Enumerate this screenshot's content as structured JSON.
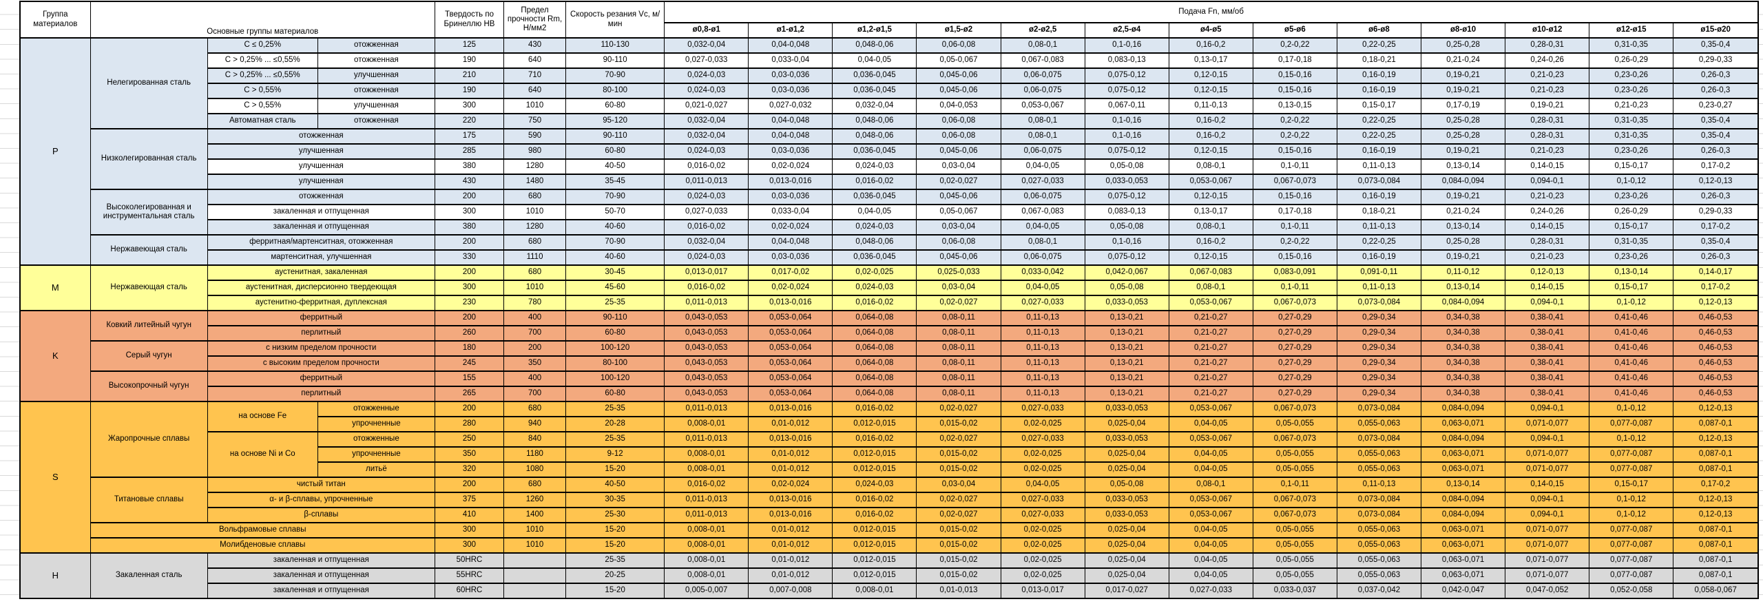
{
  "header": {
    "col_group": "Группа материалов",
    "col_main": "Основные группы материалов",
    "col_hardness": "Твердость по Бринеллю НВ",
    "col_strength": "Предел прочности Rm, Н/мм2",
    "col_speed": "Скорость резания Vc, м/мин",
    "feed_title": "Подача Fn, мм/об",
    "feed_cols": [
      "ø0,8-ø1",
      "ø1-ø1,2",
      "ø1,2-ø1,5",
      "ø1,5-ø2",
      "ø2-ø2,5",
      "ø2,5-ø4",
      "ø4-ø5",
      "ø5-ø6",
      "ø6-ø8",
      "ø8-ø10",
      "ø10-ø12",
      "ø12-ø15",
      "ø15-ø20"
    ]
  },
  "colors": {
    "group_p": "#DCE6F1",
    "group_m": "#FFFF99",
    "group_k": "#F3A97E",
    "group_s": "#FFC44F",
    "group_h": "#D9D9D9",
    "border": "#000000",
    "gridline": "#D9D9D9"
  },
  "feed_profiles": {
    "A": [
      "0,032-0,04",
      "0,04-0,048",
      "0,048-0,06",
      "0,06-0,08",
      "0,08-0,1",
      "0,1-0,16",
      "0,16-0,2",
      "0,2-0,22",
      "0,22-0,25",
      "0,25-0,28",
      "0,28-0,31",
      "0,31-0,35",
      "0,35-0,4"
    ],
    "B": [
      "0,027-0,033",
      "0,033-0,04",
      "0,04-0,05",
      "0,05-0,067",
      "0,067-0,083",
      "0,083-0,13",
      "0,13-0,17",
      "0,17-0,18",
      "0,18-0,21",
      "0,21-0,24",
      "0,24-0,26",
      "0,26-0,29",
      "0,29-0,33"
    ],
    "C": [
      "0,024-0,03",
      "0,03-0,036",
      "0,036-0,045",
      "0,045-0,06",
      "0,06-0,075",
      "0,075-0,12",
      "0,12-0,15",
      "0,15-0,16",
      "0,16-0,19",
      "0,19-0,21",
      "0,21-0,23",
      "0,23-0,26",
      "0,26-0,3"
    ],
    "D": [
      "0,021-0,027",
      "0,027-0,032",
      "0,032-0,04",
      "0,04-0,053",
      "0,053-0,067",
      "0,067-0,11",
      "0,11-0,13",
      "0,13-0,15",
      "0,15-0,17",
      "0,17-0,19",
      "0,19-0,21",
      "0,21-0,23",
      "0,23-0,27"
    ],
    "E": [
      "0,016-0,02",
      "0,02-0,024",
      "0,024-0,03",
      "0,03-0,04",
      "0,04-0,05",
      "0,05-0,08",
      "0,08-0,1",
      "0,1-0,11",
      "0,11-0,13",
      "0,13-0,14",
      "0,14-0,15",
      "0,15-0,17",
      "0,17-0,2"
    ],
    "F": [
      "0,011-0,013",
      "0,013-0,016",
      "0,016-0,02",
      "0,02-0,027",
      "0,027-0,033",
      "0,033-0,053",
      "0,053-0,067",
      "0,067-0,073",
      "0,073-0,084",
      "0,084-0,094",
      "0,094-0,1",
      "0,1-0,12",
      "0,12-0,13"
    ],
    "G": [
      "0,013-0,017",
      "0,017-0,02",
      "0,02-0,025",
      "0,025-0,033",
      "0,033-0,042",
      "0,042-0,067",
      "0,067-0,083",
      "0,083-0,091",
      "0,091-0,11",
      "0,11-0,12",
      "0,12-0,13",
      "0,13-0,14",
      "0,14-0,17"
    ],
    "H": [
      "0,043-0,053",
      "0,053-0,064",
      "0,064-0,08",
      "0,08-0,11",
      "0,11-0,13",
      "0,13-0,21",
      "0,21-0,27",
      "0,27-0,29",
      "0,29-0,34",
      "0,34-0,38",
      "0,38-0,41",
      "0,41-0,46",
      "0,46-0,53"
    ],
    "I": [
      "0,008-0,01",
      "0,01-0,012",
      "0,012-0,015",
      "0,015-0,02",
      "0,02-0,025",
      "0,025-0,04",
      "0,04-0,05",
      "0,05-0,055",
      "0,055-0,063",
      "0,063-0,071",
      "0,071-0,077",
      "0,077-0,087",
      "0,087-0,1"
    ],
    "J": [
      "0,005-0,007",
      "0,007-0,008",
      "0,008-0,01",
      "0,01-0,013",
      "0,013-0,017",
      "0,017-0,027",
      "0,027-0,033",
      "0,033-0,037",
      "0,037-0,042",
      "0,042-0,047",
      "0,047-0,052",
      "0,052-0,058",
      "0,058-0,067"
    ]
  },
  "rows": [
    {
      "grp": "p",
      "g": {
        "t": "P",
        "rs": 15
      },
      "m": {
        "t": "Нелегированная сталь",
        "rs": 6
      },
      "s": {
        "t": "C ≤ 0,25%"
      },
      "st": {
        "t": "отожженная"
      },
      "hb": "125",
      "rm": "430",
      "vc": "110-130",
      "p": "A"
    },
    {
      "grp": "p",
      "white": true,
      "s": {
        "t": "С > 0,25% ... ≤0,55%"
      },
      "st": {
        "t": "отожженная"
      },
      "hb": "190",
      "rm": "640",
      "vc": "90-110",
      "p": "B"
    },
    {
      "grp": "p",
      "s": {
        "t": "С > 0,25% ... ≤0,55%"
      },
      "st": {
        "t": "улучшенная"
      },
      "hb": "210",
      "rm": "710",
      "vc": "70-90",
      "p": "C"
    },
    {
      "grp": "p",
      "s": {
        "t": "C > 0,55%"
      },
      "st": {
        "t": "отожженная"
      },
      "hb": "190",
      "rm": "640",
      "vc": "80-100",
      "p": "C"
    },
    {
      "grp": "p",
      "white": true,
      "s": {
        "t": "C > 0,55%"
      },
      "st": {
        "t": "улучшенная"
      },
      "hb": "300",
      "rm": "1010",
      "vc": "60-80",
      "p": "D"
    },
    {
      "grp": "p",
      "s": {
        "t": "Автоматная сталь"
      },
      "st": {
        "t": "отожженная"
      },
      "hb": "220",
      "rm": "750",
      "vc": "95-120",
      "p": "A"
    },
    {
      "grp": "p",
      "m": {
        "t": "Низколегированная сталь",
        "rs": 4
      },
      "s": {
        "t": "отожженная",
        "cs": 2
      },
      "hb": "175",
      "rm": "590",
      "vc": "90-110",
      "p": "A"
    },
    {
      "grp": "p",
      "s": {
        "t": "улучшенная",
        "cs": 2
      },
      "hb": "285",
      "rm": "980",
      "vc": "60-80",
      "p": "C"
    },
    {
      "grp": "p",
      "white": true,
      "s": {
        "t": "улучшенная",
        "cs": 2
      },
      "hb": "380",
      "rm": "1280",
      "vc": "40-50",
      "p": "E"
    },
    {
      "grp": "p",
      "s": {
        "t": "улучшенная",
        "cs": 2
      },
      "hb": "430",
      "rm": "1480",
      "vc": "35-45",
      "p": "F"
    },
    {
      "grp": "p",
      "m": {
        "t": "Высоколегированная и инструментальная сталь",
        "rs": 3
      },
      "s": {
        "t": "отожженная",
        "cs": 2
      },
      "hb": "200",
      "rm": "680",
      "vc": "70-90",
      "p": "C"
    },
    {
      "grp": "p",
      "white": true,
      "s": {
        "t": "закаленная и отпущенная",
        "cs": 2
      },
      "hb": "300",
      "rm": "1010",
      "vc": "50-70",
      "p": "B"
    },
    {
      "grp": "p",
      "s": {
        "t": "закаленная и отпущенная",
        "cs": 2
      },
      "hb": "380",
      "rm": "1280",
      "vc": "40-60",
      "p": "E"
    },
    {
      "grp": "p",
      "m": {
        "t": "Нержавеющая сталь",
        "rs": 2
      },
      "s": {
        "t": "ферритная/мартенситная, отожженная",
        "cs": 2
      },
      "hb": "200",
      "rm": "680",
      "vc": "70-90",
      "p": "A"
    },
    {
      "grp": "p",
      "s": {
        "t": "мартенситная, улучшенная",
        "cs": 2
      },
      "hb": "330",
      "rm": "1110",
      "vc": "40-60",
      "p": "C"
    },
    {
      "grp": "m",
      "g": {
        "t": "M",
        "rs": 3
      },
      "m": {
        "t": "Нержавеющая сталь",
        "rs": 3
      },
      "s": {
        "t": "аустенитная, закаленная",
        "cs": 2
      },
      "hb": "200",
      "rm": "680",
      "vc": "30-45",
      "p": "G"
    },
    {
      "grp": "m",
      "s": {
        "t": "аустенитная, дисперсионно твердеющая",
        "cs": 2
      },
      "hb": "300",
      "rm": "1010",
      "vc": "45-60",
      "p": "E"
    },
    {
      "grp": "m",
      "s": {
        "t": "аустенитно-ферритная, дуплексная",
        "cs": 2
      },
      "hb": "230",
      "rm": "780",
      "vc": "25-35",
      "p": "F"
    },
    {
      "grp": "k",
      "g": {
        "t": "K",
        "rs": 6
      },
      "m": {
        "t": "Ковкий литейный чугун",
        "rs": 2
      },
      "s": {
        "t": "ферритный",
        "cs": 2
      },
      "hb": "200",
      "rm": "400",
      "vc": "90-110",
      "p": "H"
    },
    {
      "grp": "k",
      "s": {
        "t": "перлитный",
        "cs": 2
      },
      "hb": "260",
      "rm": "700",
      "vc": "60-80",
      "p": "H"
    },
    {
      "grp": "k",
      "m": {
        "t": "Серый чугун",
        "rs": 2
      },
      "s": {
        "t": "с низким пределом прочности",
        "cs": 2
      },
      "hb": "180",
      "rm": "200",
      "vc": "100-120",
      "p": "H"
    },
    {
      "grp": "k",
      "s": {
        "t": "с высоким пределом прочности",
        "cs": 2
      },
      "hb": "245",
      "rm": "350",
      "vc": "80-100",
      "p": "H"
    },
    {
      "grp": "k",
      "m": {
        "t": "Высокопрочный чугун",
        "rs": 2
      },
      "s": {
        "t": "ферритный",
        "cs": 2
      },
      "hb": "155",
      "rm": "400",
      "vc": "100-120",
      "p": "H"
    },
    {
      "grp": "k",
      "s": {
        "t": "перлитный",
        "cs": 2
      },
      "hb": "265",
      "rm": "700",
      "vc": "60-80",
      "p": "H"
    },
    {
      "grp": "s",
      "g": {
        "t": "S",
        "rs": 10
      },
      "m": {
        "t": "Жаропрочные сплавы",
        "rs": 5
      },
      "s": {
        "t": "на основе Fe",
        "rs": 2
      },
      "st": {
        "t": "отожженные"
      },
      "hb": "200",
      "rm": "680",
      "vc": "25-35",
      "p": "F"
    },
    {
      "grp": "s",
      "st": {
        "t": "упрочненные"
      },
      "hb": "280",
      "rm": "940",
      "vc": "20-28",
      "p": "I"
    },
    {
      "grp": "s",
      "s": {
        "t": "на основе Ni и Co",
        "rs": 3
      },
      "st": {
        "t": "отожженные"
      },
      "hb": "250",
      "rm": "840",
      "vc": "25-35",
      "p": "F"
    },
    {
      "grp": "s",
      "st": {
        "t": "упрочненные"
      },
      "hb": "350",
      "rm": "1180",
      "vc": "9-12",
      "p": "I"
    },
    {
      "grp": "s",
      "st": {
        "t": "литьё"
      },
      "hb": "320",
      "rm": "1080",
      "vc": "15-20",
      "p": "I"
    },
    {
      "grp": "s",
      "m": {
        "t": "Титановые сплавы",
        "rs": 3
      },
      "s": {
        "t": "чистый титан",
        "cs": 2
      },
      "hb": "200",
      "rm": "680",
      "vc": "40-50",
      "p": "E"
    },
    {
      "grp": "s",
      "s": {
        "t": "α- и β-сплавы, упрочненные",
        "cs": 2
      },
      "hb": "375",
      "rm": "1260",
      "vc": "30-35",
      "p": "F"
    },
    {
      "grp": "s",
      "s": {
        "t": "β-сплавы",
        "cs": 2
      },
      "hb": "410",
      "rm": "1400",
      "vc": "25-30",
      "p": "F"
    },
    {
      "grp": "s",
      "m": {
        "t": "Вольфрамовые сплавы",
        "cs": 3
      },
      "hb": "300",
      "rm": "1010",
      "vc": "15-20",
      "p": "I"
    },
    {
      "grp": "s",
      "m": {
        "t": "Молибденовые сплавы",
        "cs": 3
      },
      "hb": "300",
      "rm": "1010",
      "vc": "15-20",
      "p": "I"
    },
    {
      "grp": "h",
      "g": {
        "t": "H",
        "rs": 3
      },
      "m": {
        "t": "Закаленная сталь",
        "rs": 3
      },
      "s": {
        "t": "закаленная и отпущенная",
        "cs": 2
      },
      "hb": "50HRC",
      "rm": "",
      "vc": "25-35",
      "p": "I"
    },
    {
      "grp": "h",
      "s": {
        "t": "закаленная и отпущенная",
        "cs": 2
      },
      "hb": "55HRC",
      "rm": "",
      "vc": "20-25",
      "p": "I"
    },
    {
      "grp": "h",
      "s": {
        "t": "закаленная и отпущенная",
        "cs": 2
      },
      "hb": "60HRC",
      "rm": "",
      "vc": "15-20",
      "p": "J"
    }
  ]
}
